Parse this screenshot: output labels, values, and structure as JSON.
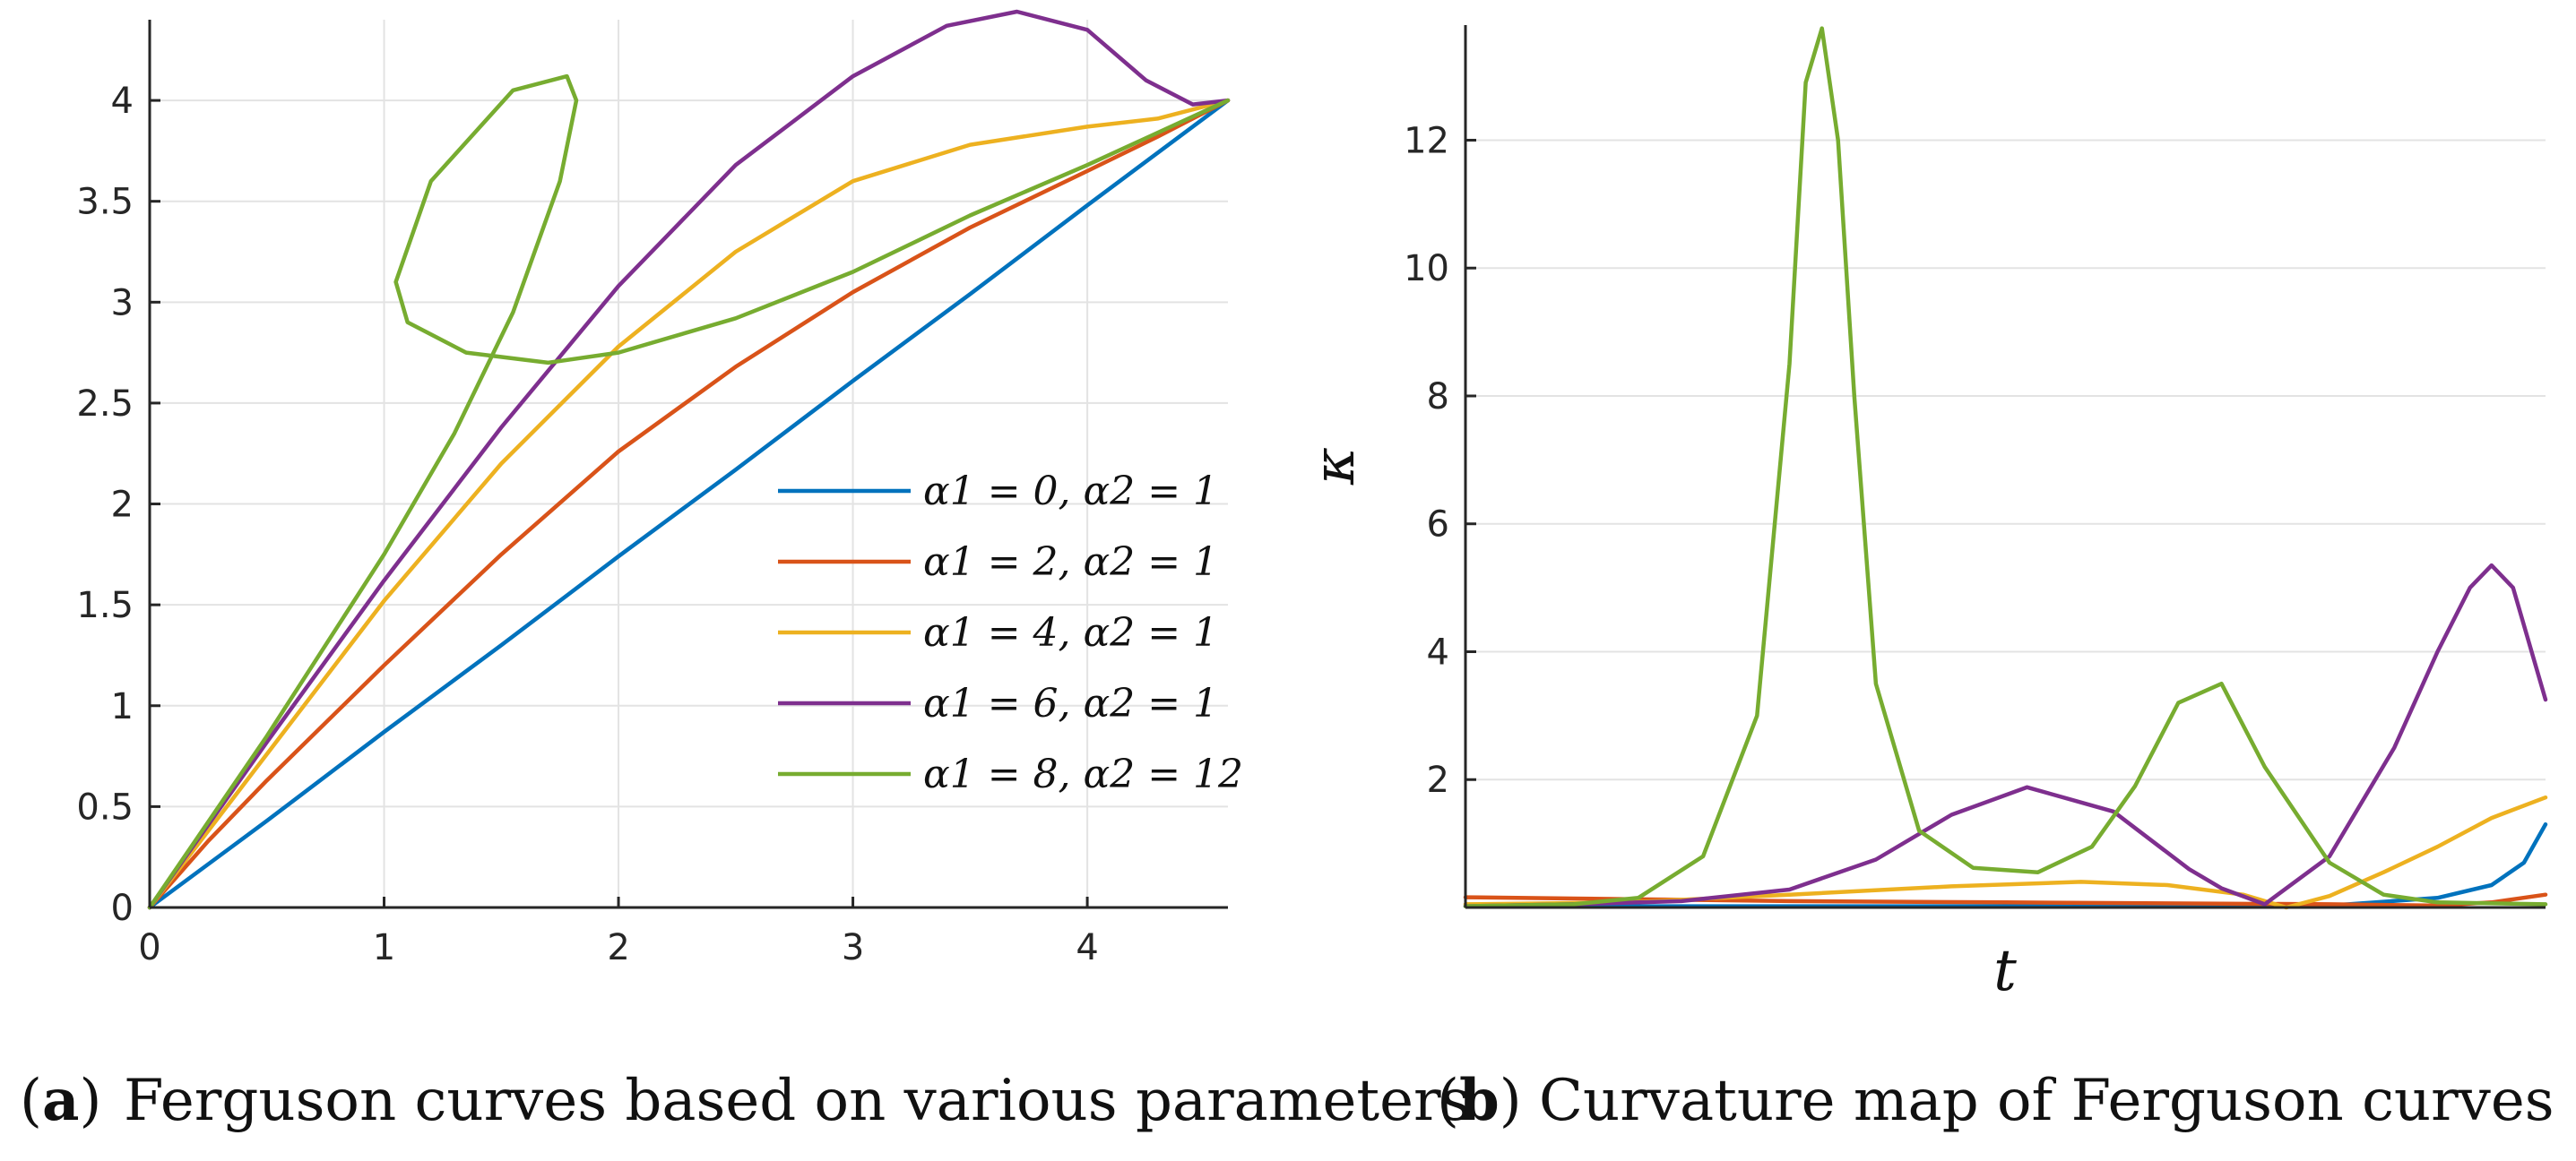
{
  "chart_data": [
    {
      "type": "line",
      "caption": {
        "tag": "a",
        "text": "Ferguson curves based on various parameters"
      },
      "xlabel": "",
      "ylabel": "",
      "xlim": [
        0,
        4.6
      ],
      "ylim": [
        0,
        4.4
      ],
      "xticks": [
        0,
        1,
        2,
        3,
        4
      ],
      "yticks": [
        0,
        0.5,
        1,
        1.5,
        2,
        2.5,
        3,
        3.5,
        4
      ],
      "grid": true,
      "legend_position": "right",
      "series": [
        {
          "name": "α1 = 0, α2 = 1",
          "color": "#0072BD",
          "x": [
            0,
            0.5,
            1,
            1.5,
            2,
            2.5,
            3,
            3.5,
            4,
            4.6
          ],
          "y": [
            0,
            0.43,
            0.87,
            1.3,
            1.74,
            2.17,
            2.61,
            3.04,
            3.48,
            4.0
          ]
        },
        {
          "name": "α1 = 2, α2 = 1",
          "color": "#D95319",
          "x": [
            0,
            0.25,
            0.5,
            1,
            1.5,
            2,
            2.5,
            3,
            3.5,
            4,
            4.3,
            4.6
          ],
          "y": [
            0,
            0.33,
            0.63,
            1.2,
            1.75,
            2.26,
            2.68,
            3.05,
            3.37,
            3.65,
            3.82,
            4.0
          ]
        },
        {
          "name": "α1 = 4, α2 = 1",
          "color": "#EDB120",
          "x": [
            0,
            0.25,
            0.5,
            1,
            1.5,
            2,
            2.5,
            3,
            3.5,
            4,
            4.3,
            4.6
          ],
          "y": [
            0,
            0.38,
            0.76,
            1.52,
            2.2,
            2.78,
            3.25,
            3.6,
            3.78,
            3.87,
            3.91,
            4.0
          ]
        },
        {
          "name": "α1 = 6, α2 = 1",
          "color": "#7E2F8E",
          "x": [
            0,
            0.5,
            1,
            1.5,
            2,
            2.5,
            3,
            3.4,
            3.7,
            4.0,
            4.25,
            4.45,
            4.6
          ],
          "y": [
            0,
            0.82,
            1.62,
            2.38,
            3.08,
            3.68,
            4.12,
            4.37,
            4.44,
            4.35,
            4.1,
            3.98,
            4.0
          ]
        },
        {
          "name": "α1 = 8, α2 = 12",
          "color": "#77AC30",
          "x": [
            0,
            0.5,
            1,
            1.3,
            1.55,
            1.75,
            1.82,
            1.78,
            1.55,
            1.2,
            1.05,
            1.1,
            1.35,
            1.7,
            2.0,
            2.5,
            3,
            3.5,
            4,
            4.6
          ],
          "y": [
            0,
            0.85,
            1.75,
            2.35,
            2.95,
            3.6,
            4.0,
            4.12,
            4.05,
            3.6,
            3.1,
            2.9,
            2.75,
            2.7,
            2.75,
            2.92,
            3.15,
            3.43,
            3.68,
            4.0
          ]
        }
      ]
    },
    {
      "type": "line",
      "caption": {
        "tag": "b",
        "text": "Curvature map of Ferguson curves"
      },
      "xlabel": "t",
      "ylabel": "κ",
      "xlim": [
        0,
        1
      ],
      "ylim": [
        0,
        13.8
      ],
      "xticks": [],
      "yticks": [
        2,
        4,
        6,
        8,
        10,
        12
      ],
      "grid": true,
      "series": [
        {
          "name": "α1 = 0, α2 = 1",
          "color": "#0072BD",
          "x": [
            0,
            0.2,
            0.4,
            0.6,
            0.8,
            0.9,
            0.95,
            0.98,
            1.0
          ],
          "y": [
            0.02,
            0.02,
            0.02,
            0.02,
            0.03,
            0.15,
            0.35,
            0.7,
            1.3
          ]
        },
        {
          "name": "α1 = 2, α2 = 1",
          "color": "#D95319",
          "x": [
            0,
            0.1,
            0.3,
            0.5,
            0.7,
            0.8,
            0.9,
            0.95,
            1.0
          ],
          "y": [
            0.16,
            0.14,
            0.1,
            0.08,
            0.06,
            0.05,
            0.03,
            0.08,
            0.2
          ]
        },
        {
          "name": "α1 = 4, α2 = 1",
          "color": "#EDB120",
          "x": [
            0,
            0.15,
            0.3,
            0.45,
            0.57,
            0.65,
            0.72,
            0.76,
            0.8,
            0.85,
            0.9,
            0.95,
            1.0
          ],
          "y": [
            0.05,
            0.08,
            0.2,
            0.33,
            0.4,
            0.35,
            0.2,
            0.0,
            0.18,
            0.55,
            0.95,
            1.4,
            1.72
          ]
        },
        {
          "name": "α1 = 6, α2 = 1",
          "color": "#7E2F8E",
          "x": [
            0,
            0.1,
            0.2,
            0.3,
            0.38,
            0.45,
            0.52,
            0.6,
            0.67,
            0.7,
            0.74,
            0.8,
            0.86,
            0.9,
            0.93,
            0.95,
            0.97,
            1.0
          ],
          "y": [
            0.02,
            0.05,
            0.1,
            0.28,
            0.75,
            1.45,
            1.88,
            1.5,
            0.6,
            0.3,
            0.05,
            0.8,
            2.5,
            4.0,
            5.0,
            5.35,
            5.0,
            3.25
          ]
        },
        {
          "name": "α1 = 8, α2 = 12",
          "color": "#77AC30",
          "x": [
            0,
            0.1,
            0.16,
            0.22,
            0.27,
            0.3,
            0.315,
            0.33,
            0.345,
            0.36,
            0.38,
            0.42,
            0.47,
            0.53,
            0.58,
            0.62,
            0.66,
            0.7,
            0.74,
            0.8,
            0.85,
            0.9,
            1.0
          ],
          "y": [
            0.02,
            0.05,
            0.15,
            0.8,
            3.0,
            8.5,
            12.9,
            13.75,
            12.0,
            8.0,
            3.5,
            1.2,
            0.62,
            0.55,
            0.95,
            1.9,
            3.2,
            3.5,
            2.2,
            0.7,
            0.2,
            0.08,
            0.05
          ]
        }
      ]
    }
  ]
}
